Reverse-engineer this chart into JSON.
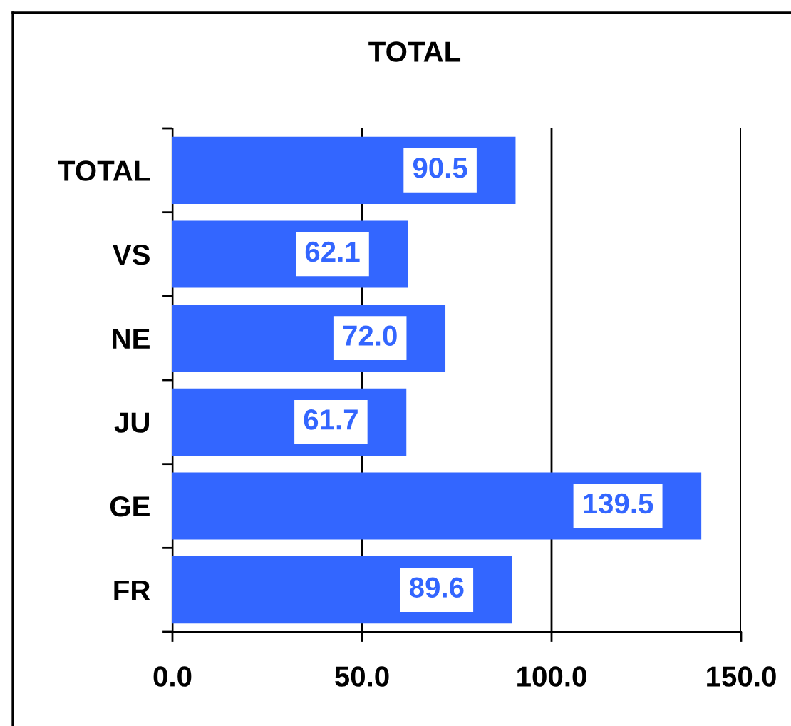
{
  "chart_data": {
    "type": "bar",
    "orientation": "horizontal",
    "title": "TOTAL",
    "categories": [
      "TOTAL",
      "VS",
      "NE",
      "JU",
      "GE",
      "FR"
    ],
    "values": [
      90.5,
      62.1,
      72.0,
      61.7,
      139.5,
      89.6
    ],
    "value_labels": [
      "90.5",
      "62.1",
      "72.0",
      "61.7",
      "139.5",
      "89.6"
    ],
    "color": "#3366ff",
    "xlim": [
      0,
      150
    ],
    "xticks": [
      {
        "value": 0,
        "label": "0.0"
      },
      {
        "value": 50,
        "label": "50.0"
      },
      {
        "value": 100,
        "label": "100.0"
      },
      {
        "value": 150,
        "label": "150.0"
      }
    ],
    "grid": "x"
  }
}
